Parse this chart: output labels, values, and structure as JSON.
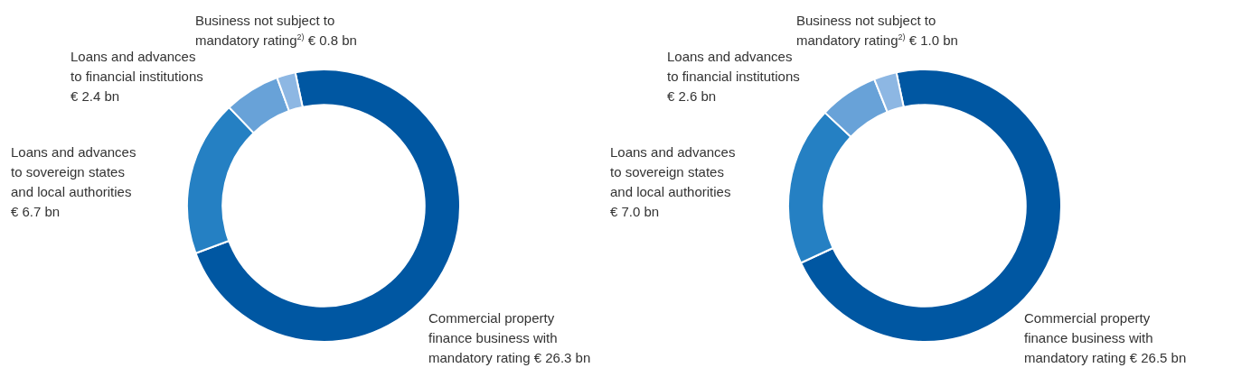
{
  "chart_data": [
    {
      "type": "donut",
      "categories": [
        "Commercial property finance business with mandatory rating",
        "Loans and advances to sovereign states and local authorities",
        "Loans and advances to financial institutions",
        "Business not subject to mandatory rating$^{2)}$"
      ],
      "values": [
        26.3,
        6.7,
        2.4,
        0.8
      ],
      "colors": [
        "#0057a2",
        "#2580c3",
        "#68a2d8",
        "#8db7e3"
      ],
      "value_labels": [
        "€ 26.3 bn",
        "€ 6.7 bn",
        "€ 2.4 bn",
        "€ 0.8 bn"
      ]
    },
    {
      "type": "donut",
      "categories": [
        "Commercial property finance business with mandatory rating",
        "Loans and advances to sovereign states and local authorities",
        "Loans and advances to financial institutions",
        "Business not subject to mandatory rating$^{2)}$"
      ],
      "values": [
        26.5,
        7.0,
        2.6,
        1.0
      ],
      "colors": [
        "#0057a2",
        "#2580c3",
        "#68a2d8",
        "#8db7e3"
      ],
      "value_labels": [
        "€ 26.5 bn",
        "€ 7.0 bn",
        "€ 2.6 bn",
        "€ 1.0 bn"
      ]
    }
  ]
}
